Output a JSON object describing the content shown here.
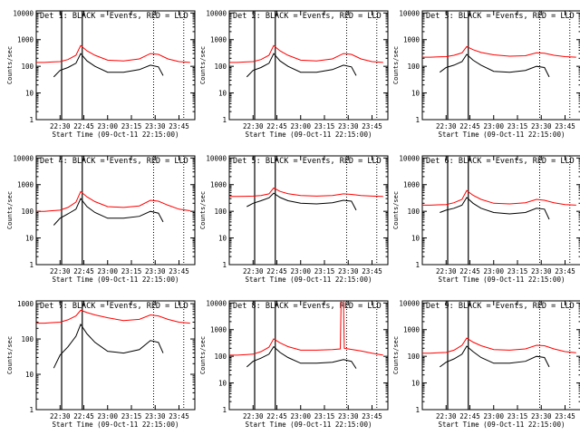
{
  "figure": {
    "background": "#ffffff",
    "axis_color": "#000000",
    "events_color": "#000000",
    "lld_color": "#ff0000"
  },
  "chart_data": [
    {
      "type": "line",
      "title": "Det 1: BLACK = Events, RED = LLD",
      "xlabel": "Start Time (09-Oct-11 22:15:00)",
      "ylabel": "Counts/sec",
      "y_scale": "log",
      "ylim": [
        1,
        12000
      ],
      "xlim": [
        "22:15",
        "23:55"
      ],
      "x_ticks": [
        "22:30",
        "22:45",
        "23:00",
        "23:15",
        "23:30",
        "23:45"
      ],
      "y_ticks": [
        "1",
        "10",
        "100",
        "1000",
        "10000"
      ],
      "series": [
        {
          "role": "lld",
          "x": [
            "22:15",
            "22:20",
            "22:25",
            "22:30",
            "22:35",
            "22:40",
            "22:43",
            "22:47",
            "22:52",
            "23:00",
            "23:10",
            "23:20",
            "23:27",
            "23:32",
            "23:38",
            "23:45",
            "23:52"
          ],
          "values": [
            140,
            140,
            145,
            150,
            180,
            260,
            600,
            380,
            260,
            170,
            160,
            190,
            300,
            280,
            190,
            150,
            140
          ]
        },
        {
          "role": "events",
          "x": [
            "22:26",
            "22:30",
            "22:35",
            "22:40",
            "22:43",
            "22:47",
            "22:52",
            "23:00",
            "23:10",
            "23:20",
            "23:27",
            "23:32",
            "23:35"
          ],
          "values": [
            40,
            70,
            90,
            130,
            300,
            160,
            100,
            60,
            60,
            75,
            110,
            95,
            45
          ]
        }
      ],
      "markers": {
        "solid": [
          "22:31",
          "22:44"
        ],
        "dotted": [
          "23:29",
          "23:48"
        ]
      }
    },
    {
      "type": "line",
      "title": "Det 2: BLACK = Events, RED = LLD",
      "xlabel": "Start Time (09-Oct-11 22:15:00)",
      "ylabel": "Counts/sec",
      "y_scale": "log",
      "ylim": [
        1,
        12000
      ],
      "xlim": [
        "22:15",
        "23:55"
      ],
      "x_ticks": [
        "22:30",
        "22:45",
        "23:00",
        "23:15",
        "23:30",
        "23:45"
      ],
      "y_ticks": [
        "1",
        "10",
        "100",
        "1000",
        "10000"
      ],
      "series": [
        {
          "role": "lld",
          "x": [
            "22:15",
            "22:20",
            "22:25",
            "22:30",
            "22:35",
            "22:40",
            "22:43",
            "22:47",
            "22:52",
            "23:00",
            "23:10",
            "23:20",
            "23:27",
            "23:32",
            "23:38",
            "23:45",
            "23:52"
          ],
          "values": [
            140,
            140,
            145,
            150,
            180,
            260,
            600,
            380,
            260,
            170,
            160,
            190,
            300,
            280,
            190,
            150,
            140
          ]
        },
        {
          "role": "events",
          "x": [
            "22:26",
            "22:30",
            "22:35",
            "22:40",
            "22:43",
            "22:47",
            "22:52",
            "23:00",
            "23:10",
            "23:20",
            "23:27",
            "23:32",
            "23:35"
          ],
          "values": [
            40,
            70,
            90,
            130,
            300,
            160,
            100,
            60,
            60,
            75,
            110,
            95,
            45
          ]
        }
      ],
      "markers": {
        "solid": [
          "22:31",
          "22:44"
        ],
        "dotted": [
          "23:29",
          "23:48"
        ]
      }
    },
    {
      "type": "line",
      "title": "Det 3: BLACK = Events, RED = LLD",
      "xlabel": "Start Time (09-Oct-11 22:15:00)",
      "ylabel": "Counts/sec",
      "y_scale": "log",
      "ylim": [
        1,
        12000
      ],
      "xlim": [
        "22:15",
        "23:55"
      ],
      "x_ticks": [
        "22:30",
        "22:45",
        "23:00",
        "23:15",
        "23:30",
        "23:45"
      ],
      "y_ticks": [
        "1",
        "10",
        "100",
        "1000",
        "10000"
      ],
      "series": [
        {
          "role": "lld",
          "x": [
            "22:15",
            "22:20",
            "22:25",
            "22:30",
            "22:35",
            "22:40",
            "22:43",
            "22:47",
            "22:52",
            "23:00",
            "23:10",
            "23:20",
            "23:27",
            "23:32",
            "23:38",
            "23:45",
            "23:52"
          ],
          "values": [
            220,
            220,
            225,
            230,
            260,
            320,
            550,
            420,
            330,
            270,
            240,
            250,
            320,
            310,
            260,
            230,
            220
          ]
        },
        {
          "role": "events",
          "x": [
            "22:26",
            "22:30",
            "22:35",
            "22:40",
            "22:43",
            "22:47",
            "22:52",
            "23:00",
            "23:10",
            "23:20",
            "23:27",
            "23:32",
            "23:35"
          ],
          "values": [
            60,
            90,
            110,
            150,
            280,
            170,
            110,
            65,
            60,
            70,
            100,
            90,
            40
          ]
        }
      ],
      "markers": {
        "solid": [
          "22:31",
          "22:44"
        ],
        "dotted": [
          "23:29",
          "23:48"
        ]
      }
    },
    {
      "type": "line",
      "title": "Det 4: BLACK = Events, RED = LLD",
      "xlabel": "Start Time (09-Oct-11 22:15:00)",
      "ylabel": "Counts/sec",
      "y_scale": "log",
      "ylim": [
        1,
        12000
      ],
      "xlim": [
        "22:15",
        "23:55"
      ],
      "x_ticks": [
        "22:30",
        "22:45",
        "23:00",
        "23:15",
        "23:30",
        "23:45"
      ],
      "y_ticks": [
        "1",
        "10",
        "100",
        "1000",
        "10000"
      ],
      "series": [
        {
          "role": "lld",
          "x": [
            "22:15",
            "22:20",
            "22:25",
            "22:30",
            "22:35",
            "22:40",
            "22:43",
            "22:47",
            "22:52",
            "23:00",
            "23:10",
            "23:20",
            "23:27",
            "23:32",
            "23:38",
            "23:45",
            "23:52"
          ],
          "values": [
            100,
            100,
            105,
            110,
            140,
            220,
            550,
            350,
            230,
            150,
            140,
            160,
            260,
            240,
            170,
            120,
            105
          ]
        },
        {
          "role": "events",
          "x": [
            "22:26",
            "22:30",
            "22:35",
            "22:40",
            "22:43",
            "22:47",
            "22:52",
            "23:00",
            "23:10",
            "23:20",
            "23:27",
            "23:32",
            "23:35"
          ],
          "values": [
            30,
            55,
            80,
            120,
            300,
            150,
            90,
            55,
            55,
            65,
            100,
            85,
            40
          ]
        }
      ],
      "markers": {
        "solid": [
          "22:31",
          "22:44"
        ],
        "dotted": [
          "23:29",
          "23:48"
        ]
      }
    },
    {
      "type": "line",
      "title": "Det 5: BLACK = Events, RED = LLD",
      "xlabel": "Start Time (09-Oct-11 22:15:00)",
      "ylabel": "Counts/sec",
      "y_scale": "log",
      "ylim": [
        1,
        12000
      ],
      "xlim": [
        "22:15",
        "23:55"
      ],
      "x_ticks": [
        "22:30",
        "22:45",
        "23:00",
        "23:15",
        "23:30",
        "23:45"
      ],
      "y_ticks": [
        "1",
        "10",
        "100",
        "1000",
        "10000"
      ],
      "series": [
        {
          "role": "lld",
          "x": [
            "22:15",
            "22:20",
            "22:25",
            "22:30",
            "22:35",
            "22:40",
            "22:43",
            "22:47",
            "22:52",
            "23:00",
            "23:10",
            "23:20",
            "23:27",
            "23:32",
            "23:38",
            "23:45",
            "23:52"
          ],
          "values": [
            360,
            360,
            365,
            370,
            390,
            450,
            750,
            560,
            460,
            390,
            370,
            390,
            450,
            430,
            390,
            370,
            360
          ]
        },
        {
          "role": "events",
          "x": [
            "22:26",
            "22:30",
            "22:35",
            "22:40",
            "22:43",
            "22:47",
            "22:52",
            "23:00",
            "23:10",
            "23:20",
            "23:27",
            "23:32",
            "23:35"
          ],
          "values": [
            150,
            200,
            250,
            320,
            480,
            330,
            250,
            200,
            190,
            210,
            260,
            240,
            110
          ]
        }
      ],
      "markers": {
        "solid": [
          "22:31",
          "22:44"
        ],
        "dotted": [
          "23:29",
          "23:48"
        ]
      }
    },
    {
      "type": "line",
      "title": "Det 6: BLACK = Events, RED = LLD",
      "xlabel": "Start Time (09-Oct-11 22:15:00)",
      "ylabel": "Counts/sec",
      "y_scale": "log",
      "ylim": [
        1,
        12000
      ],
      "xlim": [
        "22:15",
        "23:55"
      ],
      "x_ticks": [
        "22:30",
        "22:45",
        "23:00",
        "23:15",
        "23:30",
        "23:45"
      ],
      "y_ticks": [
        "1",
        "10",
        "100",
        "1000",
        "10000"
      ],
      "series": [
        {
          "role": "lld",
          "x": [
            "22:15",
            "22:20",
            "22:25",
            "22:30",
            "22:35",
            "22:40",
            "22:43",
            "22:47",
            "22:52",
            "23:00",
            "23:10",
            "23:20",
            "23:27",
            "23:32",
            "23:38",
            "23:45",
            "23:52"
          ],
          "values": [
            170,
            170,
            175,
            180,
            210,
            280,
            600,
            400,
            280,
            200,
            190,
            210,
            280,
            260,
            210,
            180,
            170
          ]
        },
        {
          "role": "events",
          "x": [
            "22:26",
            "22:30",
            "22:35",
            "22:40",
            "22:43",
            "22:47",
            "22:52",
            "23:00",
            "23:10",
            "23:20",
            "23:27",
            "23:32",
            "23:35"
          ],
          "values": [
            90,
            110,
            130,
            170,
            330,
            200,
            130,
            90,
            80,
            90,
            130,
            120,
            50
          ]
        }
      ],
      "markers": {
        "solid": [
          "22:31",
          "22:44"
        ],
        "dotted": [
          "23:29",
          "23:48"
        ]
      }
    },
    {
      "type": "line",
      "title": "Det 7: BLACK = Events, RED = LLD",
      "xlabel": "Start Time (09-Oct-11 22:15:00)",
      "ylabel": "Counts/sec",
      "y_scale": "log",
      "ylim": [
        1,
        1200
      ],
      "xlim": [
        "22:15",
        "23:55"
      ],
      "x_ticks": [
        "22:30",
        "22:45",
        "23:00",
        "23:15",
        "23:30",
        "23:45"
      ],
      "y_ticks": [
        "1",
        "10",
        "100",
        "1000"
      ],
      "series": [
        {
          "role": "lld",
          "x": [
            "22:15",
            "22:20",
            "22:25",
            "22:30",
            "22:35",
            "22:40",
            "22:43",
            "22:47",
            "22:52",
            "23:00",
            "23:10",
            "23:20",
            "23:27",
            "23:32",
            "23:38",
            "23:45",
            "23:52"
          ],
          "values": [
            280,
            280,
            290,
            300,
            350,
            450,
            650,
            560,
            480,
            400,
            330,
            360,
            480,
            450,
            360,
            300,
            280
          ]
        },
        {
          "role": "events",
          "x": [
            "22:26",
            "22:30",
            "22:35",
            "22:40",
            "22:43",
            "22:47",
            "22:52",
            "23:00",
            "23:10",
            "23:20",
            "23:27",
            "23:32",
            "23:35"
          ],
          "values": [
            15,
            35,
            60,
            120,
            260,
            140,
            80,
            45,
            40,
            50,
            90,
            80,
            40
          ]
        }
      ],
      "markers": {
        "solid": [
          "22:31",
          "22:44"
        ],
        "dotted": [
          "23:29",
          "23:48"
        ]
      }
    },
    {
      "type": "line",
      "title": "Det 8: BLACK = Events, RED = LLD",
      "xlabel": "Start Time (09-Oct-11 22:15:00)",
      "ylabel": "Counts/sec",
      "y_scale": "log",
      "ylim": [
        1,
        12000
      ],
      "xlim": [
        "22:15",
        "23:55"
      ],
      "x_ticks": [
        "22:30",
        "22:45",
        "23:00",
        "23:15",
        "23:30",
        "23:45"
      ],
      "y_ticks": [
        "1",
        "10",
        "100",
        "1000",
        "10000"
      ],
      "series": [
        {
          "role": "lld",
          "x": [
            "22:15",
            "22:20",
            "22:25",
            "22:30",
            "22:35",
            "22:40",
            "22:43",
            "22:47",
            "22:52",
            "23:00",
            "23:10",
            "23:20",
            "23:25",
            "23:25.5",
            "23:27",
            "23:27.5",
            "23:30",
            "23:38",
            "23:45",
            "23:52"
          ],
          "values": [
            110,
            110,
            115,
            120,
            150,
            220,
            450,
            320,
            230,
            170,
            170,
            180,
            190,
            12000,
            12000,
            200,
            190,
            160,
            130,
            110
          ]
        },
        {
          "role": "events",
          "x": [
            "22:26",
            "22:30",
            "22:35",
            "22:40",
            "22:43",
            "22:47",
            "22:52",
            "23:00",
            "23:10",
            "23:20",
            "23:27",
            "23:32",
            "23:35"
          ],
          "values": [
            40,
            65,
            85,
            120,
            230,
            140,
            90,
            55,
            55,
            60,
            75,
            65,
            35
          ]
        }
      ],
      "markers": {
        "solid": [
          "22:31",
          "22:44"
        ],
        "dotted": [
          "23:29",
          "23:48"
        ]
      }
    },
    {
      "type": "line",
      "title": "Det 9: BLACK = Events, RED = LLD",
      "xlabel": "Start Time (09-Oct-11 22:15:00)",
      "ylabel": "Counts/sec",
      "y_scale": "log",
      "ylim": [
        1,
        12000
      ],
      "xlim": [
        "22:15",
        "23:55"
      ],
      "x_ticks": [
        "22:30",
        "22:45",
        "23:00",
        "23:15",
        "23:30",
        "23:45"
      ],
      "y_ticks": [
        "1",
        "10",
        "100",
        "1000",
        "10000"
      ],
      "series": [
        {
          "role": "lld",
          "x": [
            "22:15",
            "22:20",
            "22:25",
            "22:30",
            "22:35",
            "22:40",
            "22:43",
            "22:47",
            "22:52",
            "23:00",
            "23:10",
            "23:20",
            "23:27",
            "23:32",
            "23:38",
            "23:45",
            "23:52"
          ],
          "values": [
            130,
            130,
            135,
            140,
            170,
            260,
            480,
            340,
            250,
            180,
            170,
            190,
            260,
            250,
            190,
            150,
            135
          ]
        },
        {
          "role": "events",
          "x": [
            "22:26",
            "22:30",
            "22:35",
            "22:40",
            "22:43",
            "22:47",
            "22:52",
            "23:00",
            "23:10",
            "23:20",
            "23:27",
            "23:32",
            "23:35"
          ],
          "values": [
            40,
            60,
            80,
            120,
            240,
            150,
            90,
            55,
            55,
            65,
            100,
            90,
            40
          ]
        }
      ],
      "markers": {
        "solid": [
          "22:31",
          "22:44"
        ],
        "dotted": [
          "23:29",
          "23:48"
        ]
      }
    }
  ]
}
